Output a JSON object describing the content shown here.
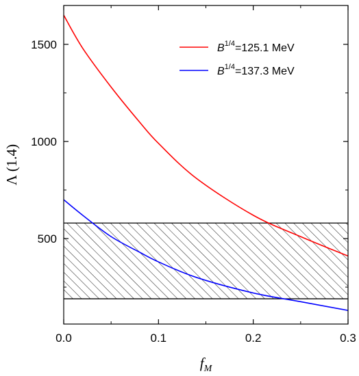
{
  "chart_data": {
    "type": "line",
    "xlabel": "f",
    "xlabel_sub": "M",
    "ylabel": "Λ (1.4)",
    "xlim": [
      0,
      0.3
    ],
    "ylim": [
      60,
      1700
    ],
    "xticks": [
      0.0,
      0.1,
      0.2,
      0.3
    ],
    "xtick_labels": [
      "0.0",
      "0.1",
      "0.2",
      "0.3"
    ],
    "yticks": [
      500,
      1000,
      1500
    ],
    "ytick_labels": [
      "500",
      "1000",
      "1500"
    ],
    "grid": false,
    "legend_position": "top-right",
    "band": {
      "y_low": 190,
      "y_high": 580,
      "pattern": "diagonal-hatch"
    },
    "series": [
      {
        "name": "B1/4=125.1 MeV",
        "legend_base": "B",
        "legend_sup": "1/4",
        "legend_rest": "=125.1 MeV",
        "color": "#ff0000",
        "x": [
          0.0,
          0.02,
          0.05,
          0.08,
          0.1,
          0.14,
          0.2,
          0.25,
          0.3
        ],
        "y": [
          1650,
          1480,
          1280,
          1100,
          990,
          810,
          620,
          510,
          410
        ]
      },
      {
        "name": "B1/4=137.3 MeV",
        "legend_base": "B",
        "legend_sup": "1/4",
        "legend_rest": "=137.3 MeV",
        "color": "#0000ff",
        "x": [
          0.0,
          0.02,
          0.05,
          0.08,
          0.1,
          0.14,
          0.2,
          0.25,
          0.3
        ],
        "y": [
          700,
          620,
          510,
          430,
          380,
          300,
          220,
          175,
          130
        ]
      }
    ]
  }
}
